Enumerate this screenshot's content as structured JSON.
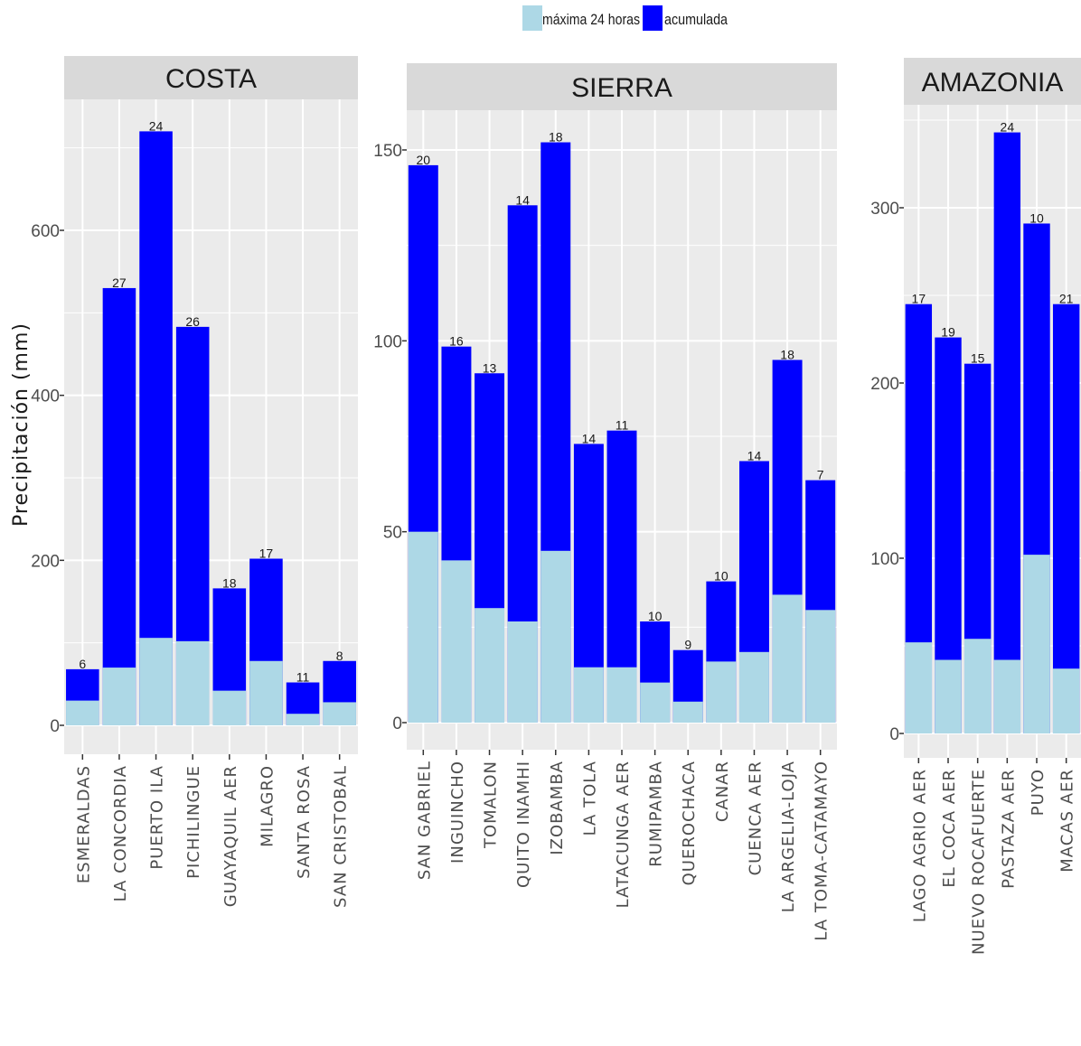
{
  "chart_data": {
    "type": "bar",
    "stacked": true,
    "ylabel": "Precipitación (mm)",
    "legend": {
      "placement": "top",
      "entries": [
        {
          "name": "máxima 24 horas",
          "color": "#add8e6"
        },
        {
          "name": "acumulada",
          "color": "#0000ff"
        }
      ]
    },
    "colors": {
      "max24": "#add8e6",
      "acum": "#0000ff",
      "panel_bg": "#ebebeb",
      "strip_bg": "#d9d9d9",
      "grid": "#ffffff"
    },
    "grid": true,
    "panels": [
      {
        "title": "COSTA",
        "ylim": [
          0,
          760
        ],
        "yticks": [
          0,
          200,
          400,
          600
        ],
        "categories": [
          "ESMERALDAS",
          "LA CONCORDIA",
          "PUERTO ILA",
          "PICHILINGUE",
          "GUAYAQUIL AER",
          "MILAGRO",
          "SANTA ROSA",
          "SAN CRISTOBAL"
        ],
        "max24": [
          30,
          70,
          106,
          102,
          42,
          78,
          14,
          28
        ],
        "acumulada": [
          68,
          530,
          720,
          483,
          166,
          202,
          52,
          78
        ],
        "labels": [
          "6",
          "27",
          "24",
          "26",
          "18",
          "17",
          "11",
          "8"
        ]
      },
      {
        "title": "SIERRA",
        "ylim": [
          -6,
          160
        ],
        "yticks": [
          0,
          50,
          100,
          150
        ],
        "categories": [
          "SAN GABRIEL",
          "INGUINCHO",
          "TOMALON",
          "QUITO INAMHI",
          "IZOBAMBA",
          "LA TOLA",
          "LATACUNGA AER",
          "RUMIPAMBA",
          "QUEROCHACA",
          "CANAR",
          "CUENCA AER",
          "LA ARGELIA-LOJA",
          "LA TOMA-CATAMAYO"
        ],
        "max24": [
          50,
          42.5,
          30,
          26.5,
          45,
          14.5,
          14.5,
          10.5,
          5.5,
          16,
          18.5,
          33.5,
          29.5
        ],
        "acumulada": [
          146,
          98.5,
          91.5,
          135.5,
          152,
          73,
          76.5,
          26.5,
          19,
          37,
          68.5,
          95,
          63.5
        ],
        "labels": [
          "20",
          "16",
          "13",
          "14",
          "18",
          "14",
          "11",
          "10",
          "9",
          "10",
          "14",
          "18",
          "7"
        ]
      },
      {
        "title": "AMAZONIA",
        "ylim": [
          -12,
          360
        ],
        "yticks": [
          0,
          100,
          200,
          300
        ],
        "categories": [
          "LAGO AGRIO AER",
          "EL COCA AER",
          "NUEVO ROCAFUERTE",
          "PASTAZA AER",
          "PUYO",
          "MACAS AER"
        ],
        "max24": [
          52,
          42,
          54,
          42,
          102,
          37
        ],
        "acumulada": [
          245,
          226,
          211,
          343,
          291,
          245
        ],
        "labels": [
          "17",
          "19",
          "15",
          "24",
          "10",
          "21"
        ]
      }
    ]
  }
}
